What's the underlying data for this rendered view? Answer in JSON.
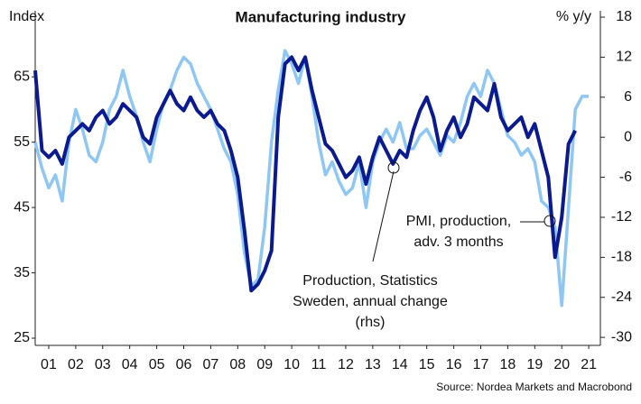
{
  "chart_data": {
    "type": "line",
    "title": "Manufacturing industry",
    "y_label": "Index",
    "y2_label": "% y/y",
    "source": "Source: Nordea Markets and Macrobond",
    "annotations": [
      {
        "lines": [
          "Production, Statistics",
          "Sweden, annual change",
          "(rhs)"
        ]
      },
      {
        "lines": [
          "PMI, production,",
          "adv. 3 months"
        ]
      }
    ],
    "x": [
      2001.0,
      2001.25,
      2001.5,
      2001.75,
      2002.0,
      2002.25,
      2002.5,
      2002.75,
      2003.0,
      2003.25,
      2003.5,
      2003.75,
      2004.0,
      2004.25,
      2004.5,
      2004.75,
      2005.0,
      2005.25,
      2005.5,
      2005.75,
      2006.0,
      2006.25,
      2006.5,
      2006.75,
      2007.0,
      2007.25,
      2007.5,
      2007.75,
      2008.0,
      2008.25,
      2008.5,
      2008.75,
      2009.0,
      2009.25,
      2009.5,
      2009.75,
      2010.0,
      2010.25,
      2010.5,
      2010.75,
      2011.0,
      2011.25,
      2011.5,
      2011.75,
      2012.0,
      2012.25,
      2012.5,
      2012.75,
      2013.0,
      2013.25,
      2013.5,
      2013.75,
      2014.0,
      2014.25,
      2014.5,
      2014.75,
      2015.0,
      2015.25,
      2015.5,
      2015.75,
      2016.0,
      2016.25,
      2016.5,
      2016.75,
      2017.0,
      2017.25,
      2017.5,
      2017.75,
      2018.0,
      2018.25,
      2018.5,
      2018.75,
      2019.0,
      2019.25,
      2019.5,
      2019.75,
      2020.0,
      2020.25,
      2020.5,
      2020.75,
      2021.0,
      2021.25,
      2021.5
    ],
    "series": [
      {
        "name": "PMI, production, adv. 3 months",
        "color": "#8fc7f4",
        "axis": "y",
        "values": [
          55,
          51,
          48,
          50,
          46,
          55,
          60,
          57,
          53,
          52,
          55,
          60,
          62,
          66,
          62,
          59,
          55,
          52,
          57,
          61,
          63,
          66,
          68,
          67,
          64,
          62,
          60,
          57,
          54,
          52,
          47,
          38,
          33,
          34,
          42,
          55,
          63,
          69,
          67,
          64,
          68,
          62,
          55,
          50,
          52,
          49,
          47,
          48,
          52,
          45,
          52,
          55,
          57,
          55,
          58,
          54,
          54,
          56,
          57,
          55,
          53,
          56,
          55,
          58,
          62,
          64,
          62,
          66,
          64,
          60,
          56,
          55,
          53,
          54,
          52,
          46,
          45,
          42,
          30,
          45,
          60,
          62,
          62
        ]
      },
      {
        "name": "Production, Statistics Sweden, annual change (rhs)",
        "color": "#0b1a8e",
        "axis": "y2",
        "values": [
          10,
          -2,
          -3,
          -2,
          -4,
          0,
          1,
          2,
          1,
          3,
          4,
          2,
          3,
          5,
          4,
          3,
          0,
          -1,
          3,
          5,
          7,
          5,
          4,
          6,
          4,
          3,
          4,
          2,
          1,
          -2,
          -6,
          -14,
          -23,
          -22,
          -20,
          -17,
          3,
          11,
          12,
          10,
          12,
          7,
          3,
          -1,
          -2,
          -4,
          -6,
          -5,
          -3,
          -7,
          -3,
          0,
          -2,
          -4,
          -2,
          -3,
          1,
          4,
          6,
          3,
          -2,
          1,
          3,
          0,
          2,
          6,
          5,
          4,
          8,
          3,
          1,
          2,
          3,
          0,
          2,
          -2,
          -6,
          -18,
          -12,
          -1,
          1,
          null,
          null
        ]
      }
    ],
    "xlim": [
      2001,
      2021.93
    ],
    "xticks": [
      {
        "value": 2001.5,
        "label": "01"
      },
      {
        "value": 2002.5,
        "label": "02"
      },
      {
        "value": 2003.5,
        "label": "03"
      },
      {
        "value": 2004.5,
        "label": "04"
      },
      {
        "value": 2005.5,
        "label": "05"
      },
      {
        "value": 2006.5,
        "label": "06"
      },
      {
        "value": 2007.5,
        "label": "07"
      },
      {
        "value": 2008.5,
        "label": "08"
      },
      {
        "value": 2009.5,
        "label": "09"
      },
      {
        "value": 2010.5,
        "label": "10"
      },
      {
        "value": 2011.5,
        "label": "11"
      },
      {
        "value": 2012.5,
        "label": "12"
      },
      {
        "value": 2013.5,
        "label": "13"
      },
      {
        "value": 2014.5,
        "label": "14"
      },
      {
        "value": 2015.5,
        "label": "15"
      },
      {
        "value": 2016.5,
        "label": "16"
      },
      {
        "value": 2017.5,
        "label": "17"
      },
      {
        "value": 2018.5,
        "label": "18"
      },
      {
        "value": 2019.5,
        "label": "19"
      },
      {
        "value": 2020.5,
        "label": "20"
      },
      {
        "value": 2021.5,
        "label": "21"
      }
    ],
    "ylim": [
      23.9,
      75.1
    ],
    "yticks": [
      25,
      35,
      45,
      55,
      65
    ],
    "y2lim": [
      -31.2,
      18.95
    ],
    "y2ticks": [
      -30,
      -24,
      -18,
      -12,
      -6,
      0,
      6,
      12,
      18
    ],
    "grid": false
  }
}
